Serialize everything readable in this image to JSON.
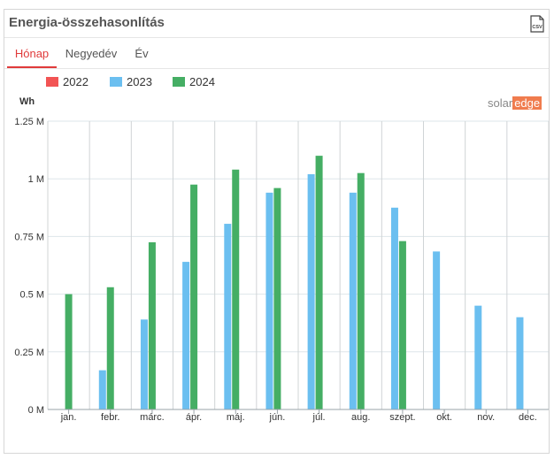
{
  "widget": {
    "title": "Energia-összehasonlítás",
    "csv_icon": "csv-file-icon",
    "tabs": [
      {
        "label": "Hónap",
        "active": true
      },
      {
        "label": "Negyedév",
        "active": false
      },
      {
        "label": "Év",
        "active": false
      }
    ],
    "brand": {
      "part1": "solar",
      "part2": "edge"
    }
  },
  "colors": {
    "s2022": "#f25454",
    "s2023": "#6bbff0",
    "s2024": "#45ae64",
    "accent": "#e03a3a"
  },
  "chart_data": {
    "type": "bar",
    "ylabel": "Wh",
    "categories": [
      "jan.",
      "febr.",
      "márc.",
      "ápr.",
      "máj.",
      "jún.",
      "júl.",
      "aug.",
      "szept.",
      "okt.",
      "nov.",
      "dec."
    ],
    "yticks": [
      "0 M",
      "0.25 M",
      "0.5 M",
      "0.75 M",
      "1 M",
      "1.25 M"
    ],
    "ylim": [
      0,
      1250000
    ],
    "grid": true,
    "legend_position": "top-left",
    "series": [
      {
        "name": "2022",
        "values": [
          null,
          null,
          null,
          null,
          null,
          null,
          null,
          null,
          null,
          null,
          null,
          null
        ]
      },
      {
        "name": "2023",
        "values": [
          null,
          170000,
          390000,
          640000,
          805000,
          940000,
          1020000,
          940000,
          875000,
          685000,
          450000,
          400000
        ]
      },
      {
        "name": "2024",
        "values": [
          500000,
          530000,
          725000,
          975000,
          1040000,
          960000,
          1100000,
          1025000,
          730000,
          null,
          null,
          null
        ]
      }
    ]
  }
}
